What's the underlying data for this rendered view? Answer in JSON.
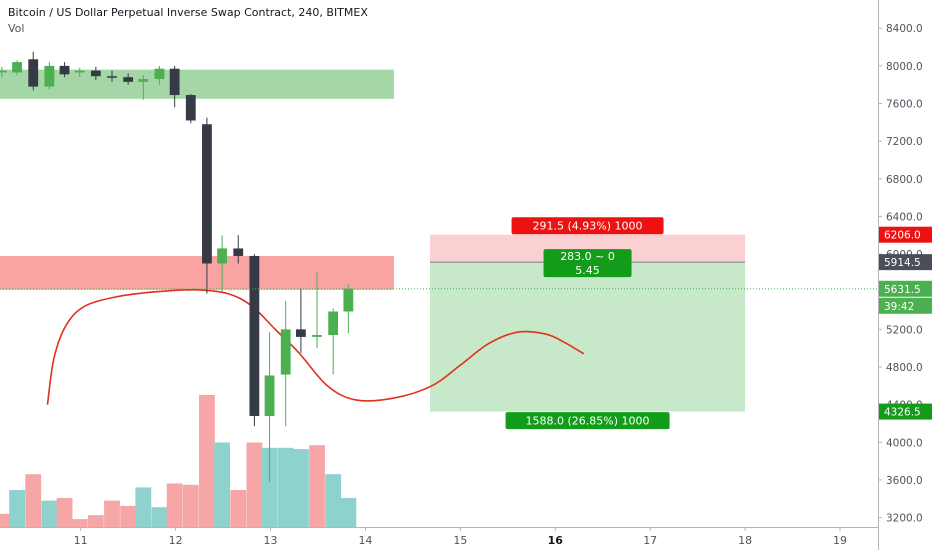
{
  "header": {
    "title": "Bitcoin / US Dollar Perpetual Inverse Swap Contract, 240, BITMEX",
    "indicator": "Vol"
  },
  "colors": {
    "up": "#4caf50",
    "down": "#363a45",
    "vol_up": "#8fd1cc",
    "vol_down": "#f7a6a8",
    "zone_green": "#a5d6a7",
    "zone_red": "#f9a3a3",
    "curve": "#e0301e",
    "tag_red": "#ee1111",
    "tag_green": "#139c19",
    "tag_dark": "#4a4e59",
    "risk_fill": "#fbd0d2",
    "reward_fill": "#c8e9c9"
  },
  "chart_data": {
    "type": "candlestick",
    "ylim": [
      3100,
      8700
    ],
    "y_ticks": [
      "8400.0",
      "8000.0",
      "7600.0",
      "7200.0",
      "6800.0",
      "6400.0",
      "6000.0",
      "5600.0",
      "5200.0",
      "4800.0",
      "4400.0",
      "4000.0",
      "3600.0",
      "3200.0"
    ],
    "xlim": [
      10.15,
      19.4
    ],
    "x_ticks": [
      {
        "label": "11",
        "x": 11,
        "bold": false
      },
      {
        "label": "12",
        "x": 12,
        "bold": false
      },
      {
        "label": "13",
        "x": 13,
        "bold": false
      },
      {
        "label": "14",
        "x": 14,
        "bold": false
      },
      {
        "label": "15",
        "x": 15,
        "bold": false
      },
      {
        "label": "16",
        "x": 16,
        "bold": true
      },
      {
        "label": "17",
        "x": 17,
        "bold": false
      },
      {
        "label": "18",
        "x": 18,
        "bold": false
      },
      {
        "label": "19",
        "x": 19,
        "bold": false
      }
    ],
    "candles": [
      {
        "x": 10.17,
        "o": 7930,
        "h": 7990,
        "l": 7880,
        "c": 7950
      },
      {
        "x": 10.33,
        "o": 7930,
        "h": 8060,
        "l": 7900,
        "c": 8040
      },
      {
        "x": 10.5,
        "o": 8070,
        "h": 8150,
        "l": 7740,
        "c": 7780
      },
      {
        "x": 10.67,
        "o": 7780,
        "h": 8040,
        "l": 7750,
        "c": 8000
      },
      {
        "x": 10.83,
        "o": 8000,
        "h": 8040,
        "l": 7880,
        "c": 7910
      },
      {
        "x": 10.99,
        "o": 7930,
        "h": 7980,
        "l": 7880,
        "c": 7950
      },
      {
        "x": 11.16,
        "o": 7950,
        "h": 7990,
        "l": 7850,
        "c": 7890
      },
      {
        "x": 11.33,
        "o": 7890,
        "h": 7950,
        "l": 7830,
        "c": 7880
      },
      {
        "x": 11.5,
        "o": 7880,
        "h": 7920,
        "l": 7800,
        "c": 7830
      },
      {
        "x": 11.66,
        "o": 7830,
        "h": 7900,
        "l": 7640,
        "c": 7860
      },
      {
        "x": 11.83,
        "o": 7860,
        "h": 8000,
        "l": 7800,
        "c": 7970
      },
      {
        "x": 11.99,
        "o": 7970,
        "h": 8000,
        "l": 7560,
        "c": 7690
      },
      {
        "x": 12.16,
        "o": 7690,
        "h": 7700,
        "l": 7390,
        "c": 7420
      },
      {
        "x": 12.33,
        "o": 7380,
        "h": 7450,
        "l": 5580,
        "c": 5900
      },
      {
        "x": 12.49,
        "o": 5900,
        "h": 6200,
        "l": 5600,
        "c": 6060
      },
      {
        "x": 12.66,
        "o": 6060,
        "h": 6200,
        "l": 5900,
        "c": 5980
      },
      {
        "x": 12.83,
        "o": 5980,
        "h": 6000,
        "l": 4170,
        "c": 4280
      },
      {
        "x": 12.99,
        "o": 4280,
        "h": 5170,
        "l": 3580,
        "c": 4710
      },
      {
        "x": 13.16,
        "o": 4720,
        "h": 5500,
        "l": 4170,
        "c": 5200
      },
      {
        "x": 13.32,
        "o": 5200,
        "h": 5630,
        "l": 4950,
        "c": 5120
      },
      {
        "x": 13.49,
        "o": 5120,
        "h": 5810,
        "l": 5000,
        "c": 5140
      },
      {
        "x": 13.66,
        "o": 5140,
        "h": 5420,
        "l": 4720,
        "c": 5390
      },
      {
        "x": 13.82,
        "o": 5390,
        "h": 5680,
        "l": 5160,
        "c": 5631.5
      }
    ],
    "volume": [
      {
        "x": 10.17,
        "v": 0.1,
        "up": false
      },
      {
        "x": 10.33,
        "v": 0.28,
        "up": true
      },
      {
        "x": 10.5,
        "v": 0.4,
        "up": false
      },
      {
        "x": 10.67,
        "v": 0.2,
        "up": true
      },
      {
        "x": 10.83,
        "v": 0.22,
        "up": false
      },
      {
        "x": 10.99,
        "v": 0.06,
        "up": false
      },
      {
        "x": 11.16,
        "v": 0.09,
        "up": false
      },
      {
        "x": 11.33,
        "v": 0.2,
        "up": false
      },
      {
        "x": 11.5,
        "v": 0.16,
        "up": false
      },
      {
        "x": 11.66,
        "v": 0.3,
        "up": true
      },
      {
        "x": 11.83,
        "v": 0.15,
        "up": true
      },
      {
        "x": 11.99,
        "v": 0.33,
        "up": false
      },
      {
        "x": 12.16,
        "v": 0.32,
        "up": false
      },
      {
        "x": 12.33,
        "v": 1.0,
        "up": false
      },
      {
        "x": 12.49,
        "v": 0.64,
        "up": true
      },
      {
        "x": 12.66,
        "v": 0.28,
        "up": false
      },
      {
        "x": 12.83,
        "v": 0.64,
        "up": false
      },
      {
        "x": 12.99,
        "v": 0.6,
        "up": true
      },
      {
        "x": 13.16,
        "v": 0.6,
        "up": true
      },
      {
        "x": 13.32,
        "v": 0.59,
        "up": true
      },
      {
        "x": 13.49,
        "v": 0.62,
        "up": false
      },
      {
        "x": 13.66,
        "v": 0.4,
        "up": true
      },
      {
        "x": 13.82,
        "v": 0.22,
        "up": true
      }
    ],
    "zones": [
      {
        "kind": "resistance",
        "x0": 10.15,
        "x1": 14.3,
        "y0": 7650,
        "y1": 7960
      },
      {
        "kind": "support",
        "x0": 10.15,
        "x1": 14.3,
        "y0": 5620,
        "y1": 5980
      }
    ],
    "curve": [
      [
        10.65,
        4400
      ],
      [
        10.72,
        4900
      ],
      [
        10.85,
        5250
      ],
      [
        11.05,
        5450
      ],
      [
        11.4,
        5550
      ],
      [
        11.8,
        5600
      ],
      [
        12.2,
        5620
      ],
      [
        12.55,
        5580
      ],
      [
        12.8,
        5450
      ],
      [
        13.05,
        5200
      ],
      [
        13.3,
        4950
      ],
      [
        13.6,
        4600
      ],
      [
        13.9,
        4450
      ],
      [
        14.3,
        4470
      ],
      [
        14.7,
        4600
      ],
      [
        15.0,
        4820
      ],
      [
        15.3,
        5050
      ],
      [
        15.6,
        5170
      ],
      [
        15.9,
        5150
      ],
      [
        16.1,
        5060
      ],
      [
        16.3,
        4940
      ]
    ],
    "last_price": 5631.5,
    "position": {
      "x0": 14.68,
      "x1": 18.0,
      "stop": 6206.0,
      "entry": 5914.5,
      "target": 4326.5,
      "stop_label": "291.5 (4.93%) 1000",
      "entry_label_1": "283.0 ~ 0",
      "entry_label_2": "5.45",
      "target_label": "1588.0 (26.85%) 1000"
    },
    "axis_tags": {
      "stop": "6206.0",
      "entry": "5914.5",
      "last": "5631.5",
      "countdown": "39:42",
      "target": "4326.5"
    }
  }
}
